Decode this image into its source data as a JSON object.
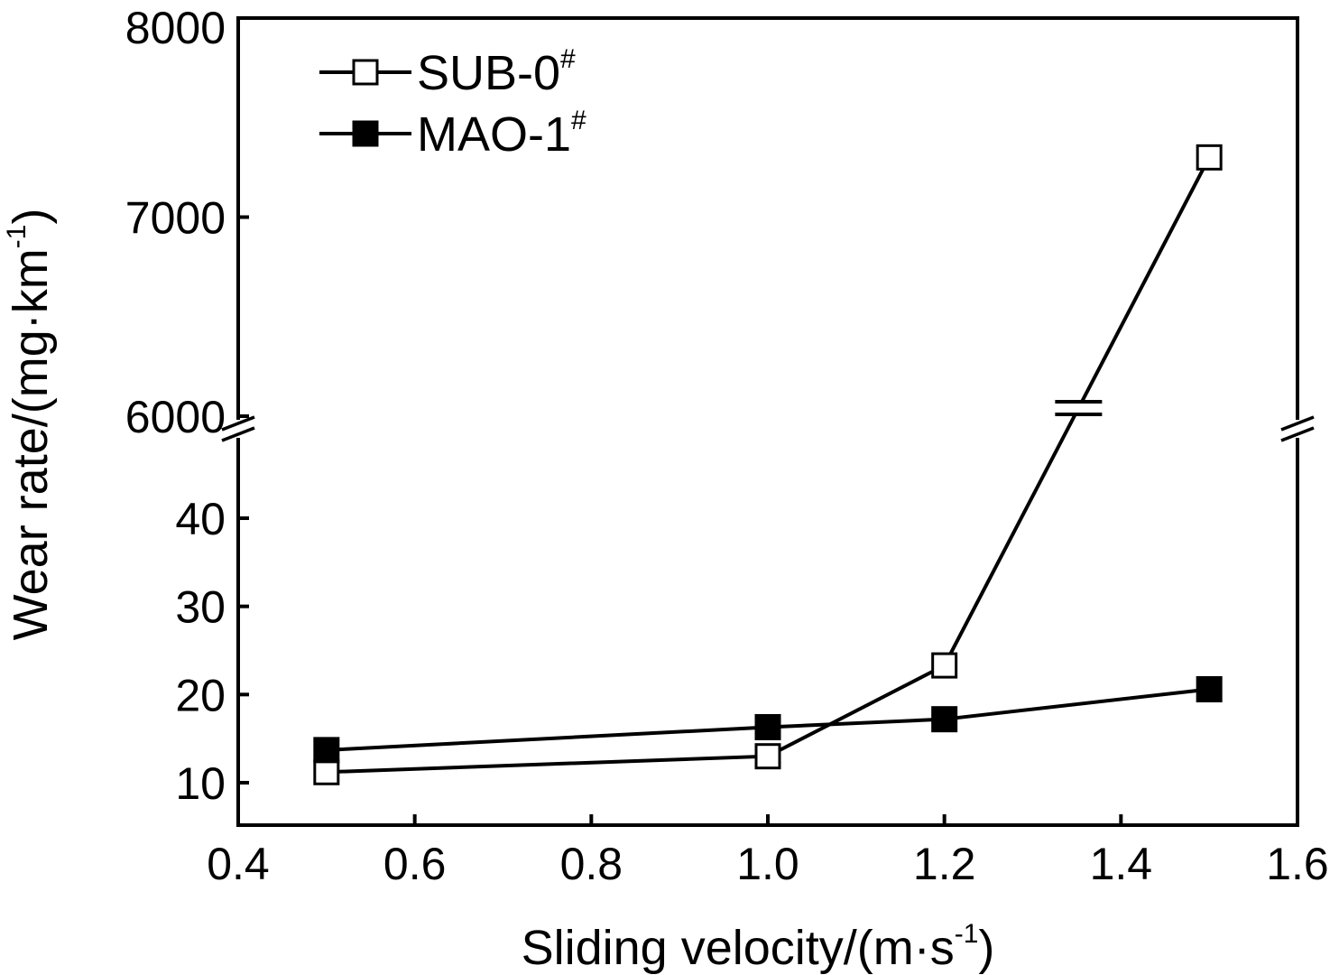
{
  "chart_data": {
    "type": "line",
    "xlabel_main": "Sliding velocity/(m·s",
    "xlabel_sup": "-1",
    "xlabel_end": ")",
    "ylabel_main": "Wear rate/(mg·km",
    "ylabel_sup": "-1",
    "ylabel_end": ")",
    "xlim": [
      0.4,
      1.6
    ],
    "x_ticks": [
      "0.4",
      "0.6",
      "0.8",
      "1.0",
      "1.2",
      "1.4",
      "1.6"
    ],
    "y_lower_ticks": [
      "10",
      "20",
      "30",
      "40"
    ],
    "y_upper_ticks": [
      "6000",
      "7000",
      "8000"
    ],
    "y_break": {
      "lower_range": [
        5,
        45
      ],
      "upper_range": [
        6000,
        8000
      ]
    },
    "x": [
      0.5,
      1.0,
      1.2,
      1.5
    ],
    "series": [
      {
        "name": "SUB-0",
        "name_sup": "#",
        "marker": "open-square",
        "values": [
          11.2,
          13.0,
          23.3,
          7300
        ]
      },
      {
        "name": "MAO-1",
        "name_sup": "#",
        "marker": "filled-square",
        "values": [
          13.7,
          16.3,
          17.2,
          20.6
        ]
      }
    ],
    "legend_position": "top-left"
  }
}
